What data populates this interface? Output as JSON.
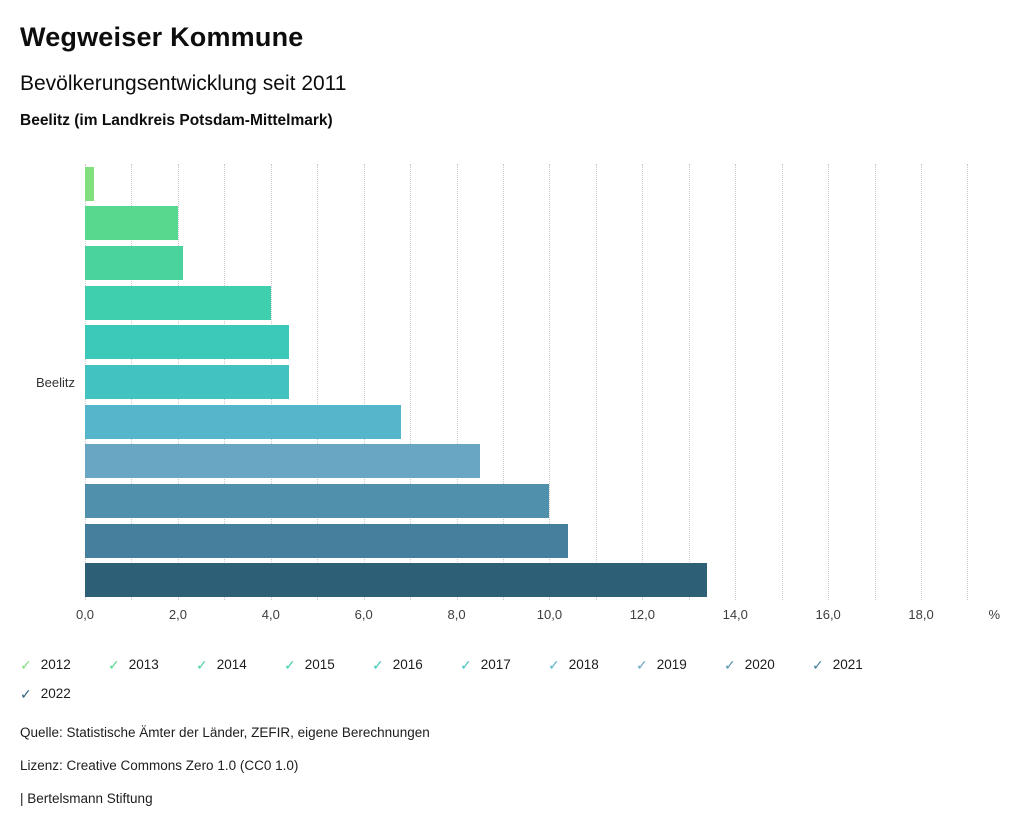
{
  "header": {
    "title": "Wegweiser Kommune",
    "subtitle": "Bevölkerungsentwicklung seit 2011",
    "region": "Beelitz (im Landkreis Potsdam-Mittelmark)"
  },
  "chart_data": {
    "type": "bar",
    "orientation": "horizontal",
    "category": "Beelitz",
    "ylabel": "Beelitz",
    "unit": "%",
    "axis": {
      "min": 0,
      "max": 19.7,
      "minor_grid_step": 1,
      "ticks": [
        {
          "value": 0,
          "label": "0,0"
        },
        {
          "value": 2,
          "label": "2,0"
        },
        {
          "value": 4,
          "label": "4,0"
        },
        {
          "value": 6,
          "label": "6,0"
        },
        {
          "value": 8,
          "label": "8,0"
        },
        {
          "value": 10,
          "label": "10,0"
        },
        {
          "value": 12,
          "label": "12,0"
        },
        {
          "value": 14,
          "label": "14,0"
        },
        {
          "value": 16,
          "label": "16,0"
        },
        {
          "value": 18,
          "label": "18,0"
        }
      ]
    },
    "series": [
      {
        "name": "2012",
        "value": 0.2,
        "color": "#82df7d"
      },
      {
        "name": "2013",
        "value": 2.0,
        "color": "#57d88f"
      },
      {
        "name": "2014",
        "value": 2.1,
        "color": "#4bd39d"
      },
      {
        "name": "2015",
        "value": 4.0,
        "color": "#3fcfae"
      },
      {
        "name": "2016",
        "value": 4.4,
        "color": "#3cc9b9"
      },
      {
        "name": "2017",
        "value": 4.4,
        "color": "#42c3c1"
      },
      {
        "name": "2018",
        "value": 6.8,
        "color": "#55b5cb"
      },
      {
        "name": "2019",
        "value": 8.5,
        "color": "#68a6c3"
      },
      {
        "name": "2020",
        "value": 10.0,
        "color": "#5190ad"
      },
      {
        "name": "2021",
        "value": 10.4,
        "color": "#44809e"
      },
      {
        "name": "2022",
        "value": 13.4,
        "color": "#2d6076"
      }
    ]
  },
  "legend": {
    "check_glyph": "✓"
  },
  "footer": {
    "source": "Quelle: Statistische Ämter der Länder, ZEFIR, eigene Berechnungen",
    "license": "Lizenz: Creative Commons Zero 1.0 (CC0 1.0)",
    "brand": "| Bertelsmann Stiftung"
  }
}
